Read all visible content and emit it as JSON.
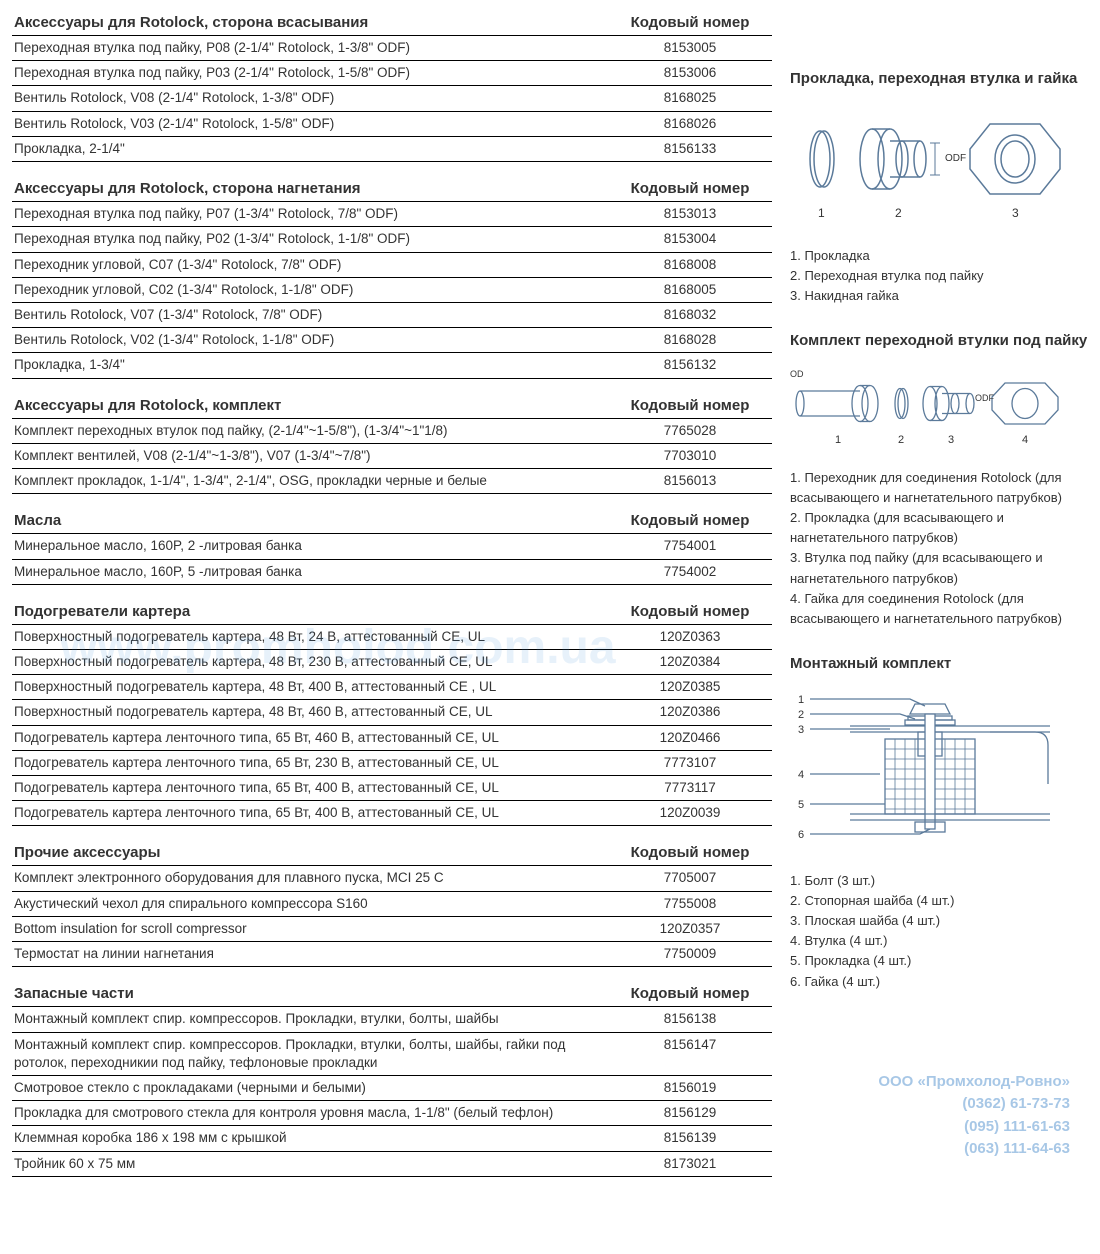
{
  "colors": {
    "text": "#333333",
    "border": "#000000",
    "diagram_stroke": "#5b7a9a",
    "watermark": "rgba(60,140,210,0.12)",
    "footer": "rgba(60,130,200,0.45)",
    "bg": "#ffffff"
  },
  "code_header": "Кодовый номер",
  "tables": [
    {
      "title": "Аксессуары для Rotolock, сторона всасывания",
      "rows": [
        [
          "Переходная втулка под пайку, P08 (2-1/4\" Rotolock, 1-3/8\" ODF)",
          "8153005"
        ],
        [
          "Переходная втулка под пайку, P03 (2-1/4\" Rotolock, 1-5/8\" ODF)",
          "8153006"
        ],
        [
          "Вентиль Rotolock, V08 (2-1/4\" Rotolock, 1-3/8\" ODF)",
          "8168025"
        ],
        [
          "Вентиль Rotolock, V03 (2-1/4\" Rotolock, 1-5/8\" ODF)",
          "8168026"
        ],
        [
          "Прокладка, 2-1/4\"",
          "8156133"
        ]
      ]
    },
    {
      "title": "Аксессуары для Rotolock, сторона нагнетания",
      "rows": [
        [
          "Переходная втулка под пайку, P07 (1-3/4\" Rotolock, 7/8\" ODF)",
          "8153013"
        ],
        [
          "Переходная втулка под пайку, P02 (1-3/4\" Rotolock, 1-1/8\" ODF)",
          "8153004"
        ],
        [
          "Переходник угловой, C07 (1-3/4\" Rotolock, 7/8\" ODF)",
          "8168008"
        ],
        [
          "Переходник угловой, C02 (1-3/4\" Rotolock, 1-1/8\" ODF)",
          "8168005"
        ],
        [
          "Вентиль Rotolock, V07 (1-3/4\" Rotolock, 7/8\" ODF)",
          "8168032"
        ],
        [
          "Вентиль Rotolock, V02 (1-3/4\" Rotolock, 1-1/8\" ODF)",
          "8168028"
        ],
        [
          "Прокладка, 1-3/4\"",
          "8156132"
        ]
      ]
    },
    {
      "title": "Аксессуары для Rotolock, комплект",
      "rows": [
        [
          "Комплект переходных втулок под пайку, (2-1/4\"~1-5/8\"), (1-3/4\"~1\"1/8)",
          "7765028"
        ],
        [
          "Комплект вентилей, V08 (2-1/4\"~1-3/8\"), V07 (1-3/4\"~7/8\")",
          "7703010"
        ],
        [
          "Комплект прокладок, 1-1/4\", 1-3/4\", 2-1/4\", OSG, прокладки черные и белые",
          "8156013"
        ]
      ]
    },
    {
      "title": "Масла",
      "rows": [
        [
          "Минеральное масло, 160P, 2 -литровая банка",
          "7754001"
        ],
        [
          "Минеральное масло, 160P, 5 -литровая банка",
          "7754002"
        ]
      ]
    },
    {
      "title": "Подогреватели картера",
      "rows": [
        [
          "Поверхностный подогреватель картера, 48 Вт, 24 В, аттестованный CE, UL",
          "120Z0363"
        ],
        [
          "Поверхностный подогреватель картера, 48 Вт, 230 В, аттестованный CE, UL",
          "120Z0384"
        ],
        [
          "Поверхностный подогреватель картера, 48 Вт, 400 В, аттестованный CE , UL",
          "120Z0385"
        ],
        [
          "Поверхностный подогреватель картера, 48 Вт, 460 В, аттестованный CE, UL",
          "120Z0386"
        ],
        [
          "Подогреватель картера ленточного типа, 65 Вт, 460 В, аттестованный CE, UL",
          "120Z0466"
        ],
        [
          "Подогреватель картера ленточного типа, 65 Вт, 230 В, аттестованный CE, UL",
          "7773107"
        ],
        [
          "Подогреватель картера ленточного типа, 65 Вт, 400 В, аттестованный CE, UL",
          "7773117"
        ],
        [
          "Подогреватель картера ленточного типа, 65 Вт, 400 В, аттестованный CE, UL",
          "120Z0039"
        ]
      ]
    },
    {
      "title": "Прочие аксессуары",
      "rows": [
        [
          "Комплект электронного оборудования для плавного пуска, MCI 25 C",
          "7705007"
        ],
        [
          "Акустический чехол для спирального компрессора S160",
          "7755008"
        ],
        [
          "Bottom insulation for scroll compressor",
          "120Z0357"
        ],
        [
          "Термостат на линии нагнетания",
          "7750009"
        ]
      ]
    },
    {
      "title": "Запасные части",
      "rows": [
        [
          "Монтажный комплект спир. компрессоров. Прокладки, втулки, болты, шайбы",
          "8156138"
        ],
        [
          "Монтажный комплект спир. компрессоров. Прокладки, втулки, болты, шайбы, гайки под ротолок, переходникии под пайку, тефлоновые прокладки",
          "8156147"
        ],
        [
          "Смотровое стекло с прокладаками (черными и белыми)",
          "8156019"
        ],
        [
          "Прокладка для смотрового стекла для контроля уровня масла, 1-1/8\" (белый тефлон)",
          "8156129"
        ],
        [
          "Клеммная коробка 186 x 198 мм с крышкой",
          "8156139"
        ],
        [
          "Тройник 60 x 75 мм",
          "8173021"
        ]
      ]
    }
  ],
  "side": {
    "gasket": {
      "title": "Прокладка, переходная втулка и гайка",
      "nums": [
        "1",
        "2",
        "3"
      ],
      "odf_label": "ODF",
      "legend": [
        "1. Прокладка",
        "2. Переходная втулка под пайку",
        "3. Накидная гайка"
      ]
    },
    "adapter": {
      "title": "Комплект переходной втулки под пайку",
      "nums": [
        "1",
        "2",
        "3",
        "4"
      ],
      "od_label": "OD",
      "odf_label": "ODF",
      "legend": [
        "1. Переходник для соединения Rotolock (для всасывающего и нагнетательного патрубков)",
        "2. Прокладка (для всасывающего и нагнетательного патрубков)",
        "3. Втулка под пайку (для всасывающего и нагнетательного патрубков)",
        "4. Гайка для соединения Rotolock (для всасывающего и нагнетательного патрубков)"
      ]
    },
    "mount": {
      "title": "Монтажный комплект",
      "nums": [
        "1",
        "2",
        "3",
        "4",
        "5",
        "6"
      ],
      "legend": [
        "1. Болт (3 шт.)",
        "2. Стопорная шайба (4 шт.)",
        "3. Плоская шайба (4 шт.)",
        "4. Втулка (4 шт.)",
        "5. Прокладка (4 шт.)",
        "6. Гайка (4 шт.)"
      ]
    }
  },
  "watermark_text": "www.promholod.com.ua",
  "footer": {
    "line1": "ООО «Промхолод-Ровно»",
    "line2": "(0362) 61-73-73",
    "line3": "(095) 111-61-63",
    "line4": "(063) 111-64-63"
  }
}
